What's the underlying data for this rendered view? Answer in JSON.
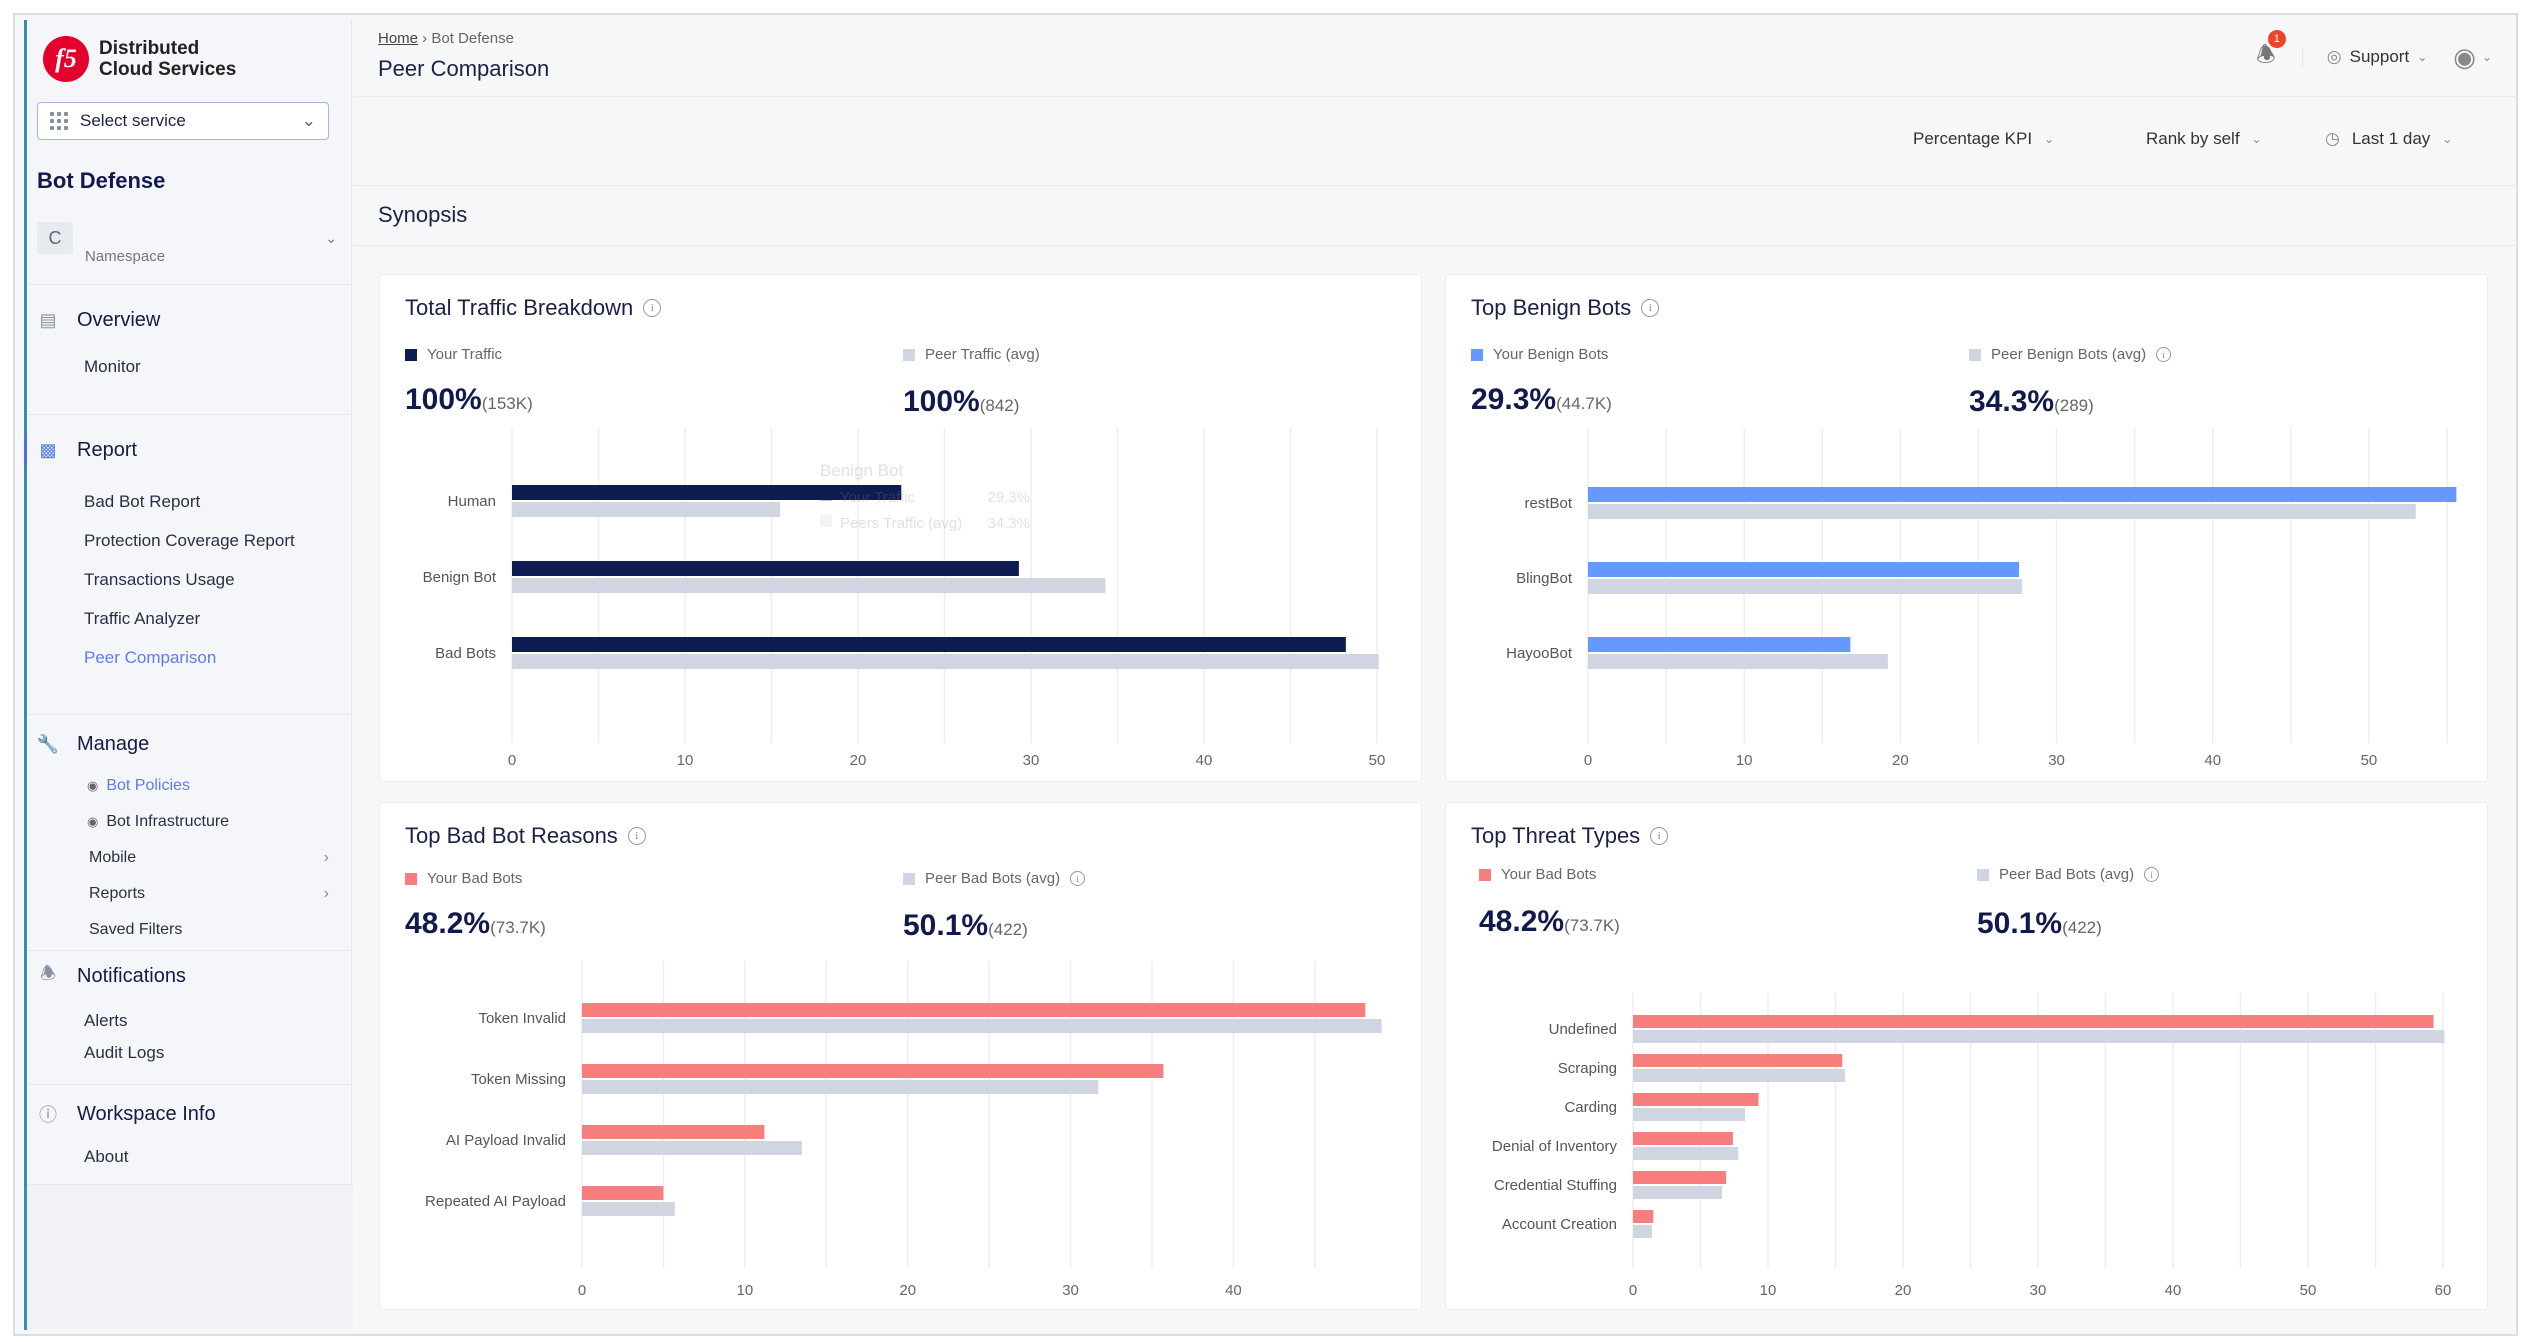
{
  "app": {
    "logo_text_1": "Distributed",
    "logo_text_2": "Cloud Services",
    "logo_mark": "f5",
    "select_service": "Select service"
  },
  "sidebar": {
    "title": "Bot Defense",
    "namespace": {
      "initial": "C",
      "label": "Namespace"
    },
    "overview": {
      "label": "Overview",
      "icon": "overview-icon",
      "items": [
        "Monitor"
      ]
    },
    "report": {
      "label": "Report",
      "icon": "bar-chart-icon",
      "items": [
        "Bad Bot Report",
        "Protection Coverage Report",
        "Transactions Usage",
        "Traffic Analyzer",
        "Peer Comparison"
      ],
      "active": "Peer Comparison"
    },
    "manage": {
      "label": "Manage",
      "icon": "wrench-icon",
      "items": [
        "Bot Policies",
        "Bot Infrastructure",
        "Mobile",
        "Reports",
        "Saved Filters"
      ]
    },
    "notifications": {
      "label": "Notifications",
      "icon": "bell-icon",
      "items": [
        "Alerts",
        "Audit Logs"
      ]
    },
    "workspace": {
      "label": "Workspace Info",
      "icon": "info-icon",
      "items": [
        "About"
      ]
    }
  },
  "header": {
    "breadcrumb": [
      "Home",
      "Bot Defense"
    ],
    "title": "Peer Comparison",
    "notifications_count": "1",
    "support": "Support"
  },
  "filters": {
    "kpi": "Percentage KPI",
    "rank": "Rank by self",
    "time": "Last 1 day"
  },
  "section_title": "Synopsis",
  "colors": {
    "navy": "#0f1c52",
    "blue": "#6699ff",
    "red": "#f87e7e",
    "peer": "#d0d5e2",
    "accent": "#5a7ef0"
  },
  "panels": [
    {
      "title": "Total Traffic Breakdown",
      "you_label": "Your Traffic",
      "you_value": "100%",
      "you_count": "(153K)",
      "peer_label": "Peer Traffic (avg)",
      "peer_value": "100%",
      "peer_count": "(842)",
      "tooltip": {
        "title": "Benign Bot",
        "rows": [
          {
            "label": "Your Traffic",
            "value": "29.3%"
          },
          {
            "label": "Peers Traffic (avg)",
            "value": "34.3%"
          }
        ]
      }
    },
    {
      "title": "Top Benign Bots",
      "you_label": "Your Benign Bots",
      "you_value": "29.3%",
      "you_count": "(44.7K)",
      "peer_label": "Peer Benign Bots (avg)",
      "peer_value": "34.3%",
      "peer_count": "(289)"
    },
    {
      "title": "Top Bad Bot Reasons",
      "you_label": "Your Bad Bots",
      "you_value": "48.2%",
      "you_count": "(73.7K)",
      "peer_label": "Peer Bad Bots (avg)",
      "peer_value": "50.1%",
      "peer_count": "(422)"
    },
    {
      "title": "Top Threat Types",
      "you_label": "Your Bad Bots",
      "you_value": "48.2%",
      "you_count": "(73.7K)",
      "peer_label": "Peer Bad Bots (avg)",
      "peer_value": "50.1%",
      "peer_count": "(422)"
    }
  ],
  "chart_data": [
    {
      "type": "bar",
      "orientation": "horizontal",
      "categories": [
        "Human",
        "Benign Bot",
        "Bad Bots"
      ],
      "series": [
        {
          "name": "Your Traffic",
          "values": [
            22.5,
            29.3,
            48.2
          ]
        },
        {
          "name": "Peer Traffic (avg)",
          "values": [
            15.5,
            34.3,
            50.1
          ]
        }
      ],
      "xlim": [
        0,
        50
      ],
      "xticks": [
        0,
        10,
        20,
        30,
        40,
        50
      ],
      "grid": true
    },
    {
      "type": "bar",
      "orientation": "horizontal",
      "categories": [
        "restBot",
        "BlingBot",
        "HayooBot"
      ],
      "series": [
        {
          "name": "Your Benign Bots",
          "values": [
            55.6,
            27.6,
            16.8
          ]
        },
        {
          "name": "Peer Benign Bots (avg)",
          "values": [
            53.0,
            27.8,
            19.2
          ]
        }
      ],
      "xlim": [
        0,
        55
      ],
      "xticks": [
        0,
        10,
        20,
        30,
        40,
        50
      ],
      "grid": true
    },
    {
      "type": "bar",
      "orientation": "horizontal",
      "categories": [
        "Token Invalid",
        "Token Missing",
        "AI Payload Invalid",
        "Repeated AI Payload"
      ],
      "series": [
        {
          "name": "Your Bad Bots",
          "values": [
            48.1,
            35.7,
            11.2,
            5.0
          ]
        },
        {
          "name": "Peer Bad Bots (avg)",
          "values": [
            49.1,
            31.7,
            13.5,
            5.7
          ]
        }
      ],
      "xlim": [
        0,
        49
      ],
      "xticks": [
        0,
        10,
        20,
        30,
        40
      ],
      "grid": true
    },
    {
      "type": "bar",
      "orientation": "horizontal",
      "categories": [
        "Undefined",
        "Scraping",
        "Carding",
        "Denial of Inventory",
        "Credential Stuffing",
        "Account Creation"
      ],
      "series": [
        {
          "name": "Your Bad Bots",
          "values": [
            59.3,
            15.5,
            9.3,
            7.4,
            6.9,
            1.5
          ]
        },
        {
          "name": "Peer Bad Bots (avg)",
          "values": [
            60.1,
            15.7,
            8.3,
            7.8,
            6.6,
            1.4
          ]
        }
      ],
      "xlim": [
        0,
        60
      ],
      "xticks": [
        0,
        10,
        20,
        30,
        40,
        50,
        60
      ],
      "grid": true
    }
  ]
}
